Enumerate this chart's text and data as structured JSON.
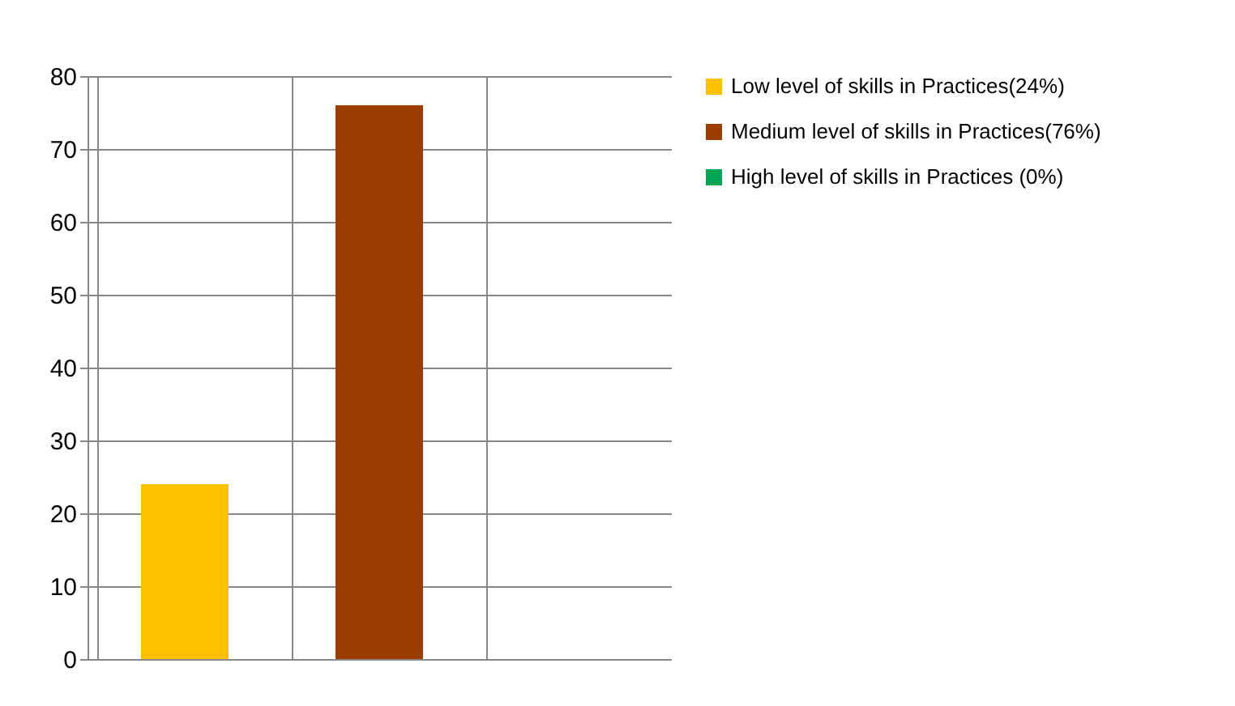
{
  "chart_data": {
    "type": "bar",
    "categories": [
      null,
      null,
      null
    ],
    "series": [
      {
        "name": "Low level of skills in Practices(24%)",
        "color": "#ffc000",
        "values": [
          24,
          null,
          null
        ]
      },
      {
        "name": "Medium level of skills in Practices(76%)",
        "color": "#9c3d00",
        "values": [
          null,
          76,
          null
        ]
      },
      {
        "name": "High level of skills in Practices (0%)",
        "color": "#00a651",
        "values": [
          null,
          null,
          0
        ]
      }
    ],
    "ylim": [
      0,
      80
    ],
    "yticks": [
      0,
      10,
      20,
      30,
      40,
      50,
      60,
      70,
      80
    ],
    "grid": true,
    "legend": "right"
  }
}
